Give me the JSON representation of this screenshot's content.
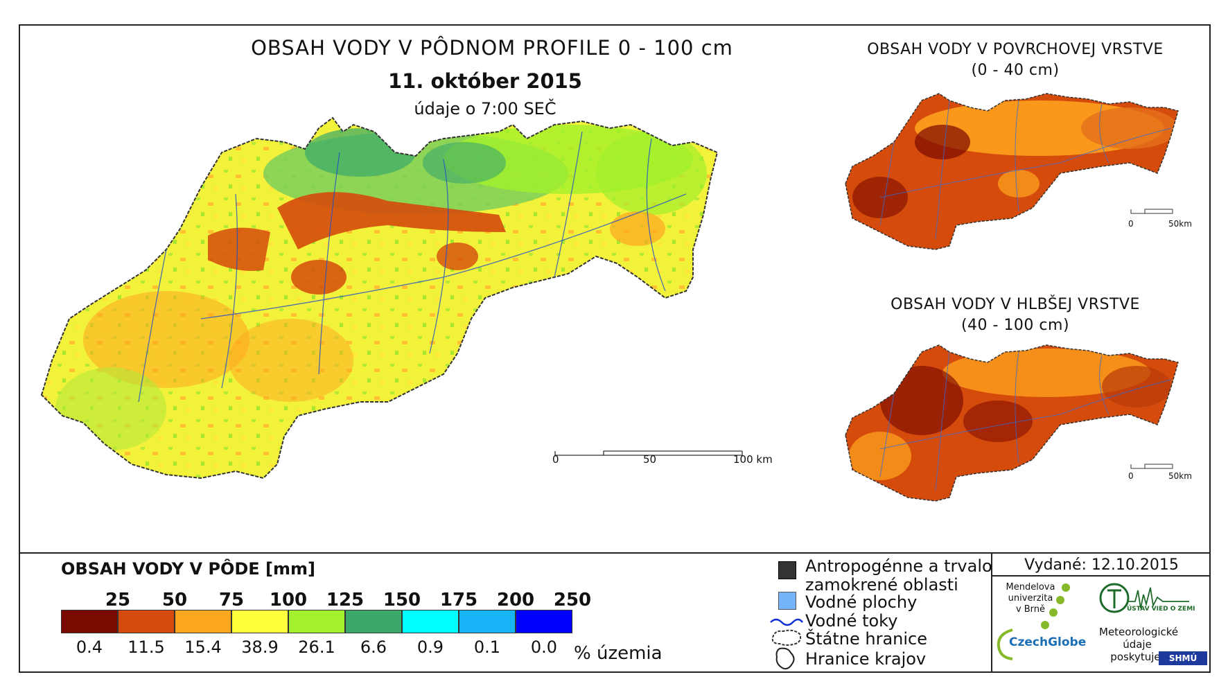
{
  "main": {
    "title": "OBSAH VODY V PÔDNOM PROFILE 0 - 100 cm",
    "date": "11. október 2015",
    "time_note": "údaje o 7:00 SEČ",
    "scale_labels": [
      "0",
      "50",
      "100 km"
    ]
  },
  "inset_top": {
    "title_line1": "OBSAH VODY V POVRCHOVEJ VRSTVE",
    "title_line2": "(0 - 40 cm)",
    "scale_labels": [
      "0",
      "50km"
    ]
  },
  "inset_bottom": {
    "title_line1": "OBSAH VODY V HLBŠEJ VRSTVE",
    "title_line2": "(40 - 100 cm)",
    "scale_labels": [
      "0",
      "50km"
    ]
  },
  "legend": {
    "title": "OBSAH VODY V PÔDE [mm]",
    "unit": "% územia",
    "thresholds": [
      "25",
      "50",
      "75",
      "100",
      "125",
      "150",
      "175",
      "200",
      "250"
    ],
    "classes": [
      {
        "color": "#7b0a00",
        "percent": "0.4"
      },
      {
        "color": "#d54b0b",
        "percent": "11.5"
      },
      {
        "color": "#ffa61f",
        "percent": "15.4"
      },
      {
        "color": "#ffff3c",
        "percent": "38.9"
      },
      {
        "color": "#a3f02c",
        "percent": "26.1"
      },
      {
        "color": "#3aa96a",
        "percent": "6.6"
      },
      {
        "color": "#00ffff",
        "percent": "0.9"
      },
      {
        "color": "#17b5f7",
        "percent": "0.1"
      },
      {
        "color": "#0000ff",
        "percent": "0.0"
      }
    ]
  },
  "symbols": {
    "urban": "Antropogénne a trvalo",
    "urban2": "zamokrené oblasti",
    "water": "Vodné plochy",
    "rivers": "Vodné toky",
    "border": "Štátne hranice",
    "regions": "Hranice krajov"
  },
  "issued": "Vydané: 12.10.2015",
  "logos": {
    "mendel": [
      "Mendelova",
      "univerzita",
      "v Brně"
    ],
    "czechglobe": "CzechGlobe",
    "uvz": "ÚSTAV VIED O ZEMI",
    "meteo": [
      "Meteorologické",
      "údaje",
      "poskytuje:"
    ],
    "shmu": "SHMÚ"
  }
}
